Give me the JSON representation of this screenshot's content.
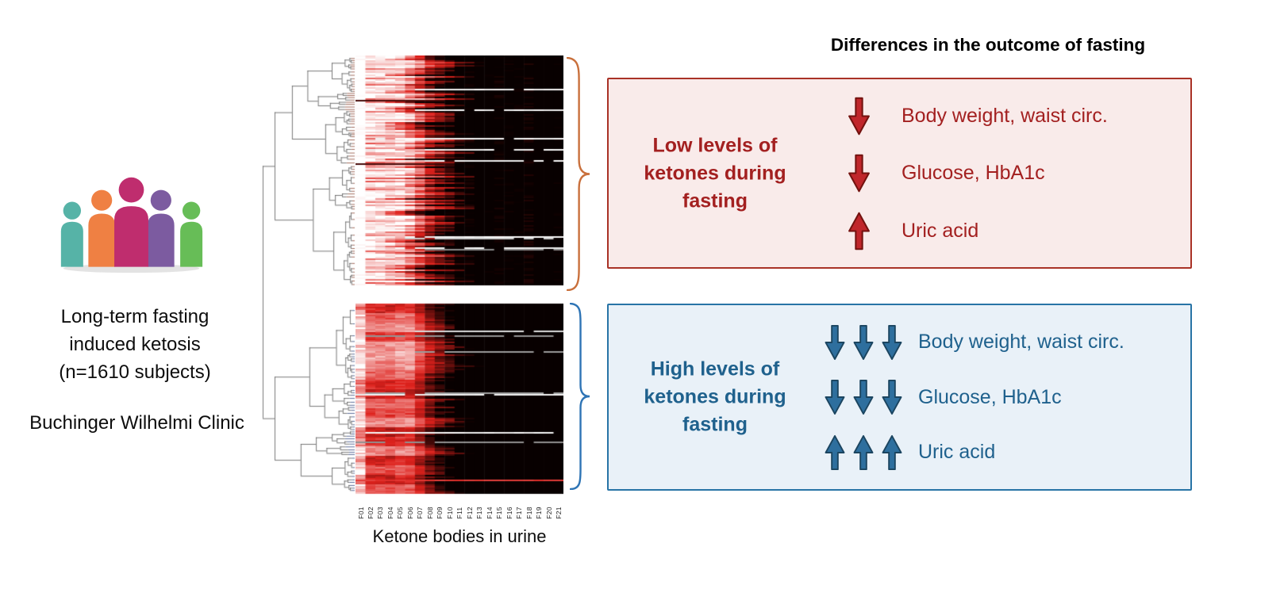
{
  "colors": {
    "low_accent": "#a32020",
    "low_box_bg": "#f9ebea",
    "low_box_border": "#a93226",
    "low_arrow_fill": "#c0262b",
    "low_arrow_stroke": "#73120f",
    "high_accent": "#1f618d",
    "high_box_bg": "#e9f1f8",
    "high_box_border": "#2874a6",
    "high_arrow_fill": "#2e6f9e",
    "high_arrow_stroke": "#1b4560",
    "brace_low": "#c9703c",
    "brace_high": "#2e74b5"
  },
  "people_icon": {
    "colors": [
      "#56b3a7",
      "#ef8043",
      "#bf2d6e",
      "#7c5ba0",
      "#67bd57"
    ]
  },
  "study": {
    "line1": "Long-term fasting",
    "line2": "induced ketosis",
    "line3": "(n=1610 subjects)",
    "clinic": "Buchinger Wilhelmi Clinic"
  },
  "heatmap": {
    "type": "heatmap",
    "caption": "Ketone bodies in urine",
    "columns": [
      "F01",
      "F02",
      "F03",
      "F04",
      "F05",
      "F06",
      "F07",
      "F08",
      "F09",
      "F10",
      "F11",
      "F12",
      "F13",
      "F14",
      "F15",
      "F16",
      "F17",
      "F18",
      "F19",
      "F20",
      "F21"
    ],
    "palette": [
      "#ffffff",
      "#df221d",
      "#000000"
    ],
    "clusters": 2
  },
  "outcome": {
    "title": "Differences in the outcome of fasting",
    "low": {
      "label": "Low levels of ketones during fasting",
      "rows": [
        {
          "direction": "down",
          "arrows": 1,
          "text": "Body weight, waist circ."
        },
        {
          "direction": "down",
          "arrows": 1,
          "text": "Glucose, HbA1c"
        },
        {
          "direction": "up",
          "arrows": 1,
          "text": "Uric acid"
        }
      ]
    },
    "high": {
      "label": "High levels of ketones during fasting",
      "rows": [
        {
          "direction": "down",
          "arrows": 3,
          "text": "Body weight, waist circ."
        },
        {
          "direction": "down",
          "arrows": 3,
          "text": "Glucose, HbA1c"
        },
        {
          "direction": "up",
          "arrows": 3,
          "text": "Uric acid"
        }
      ]
    }
  }
}
